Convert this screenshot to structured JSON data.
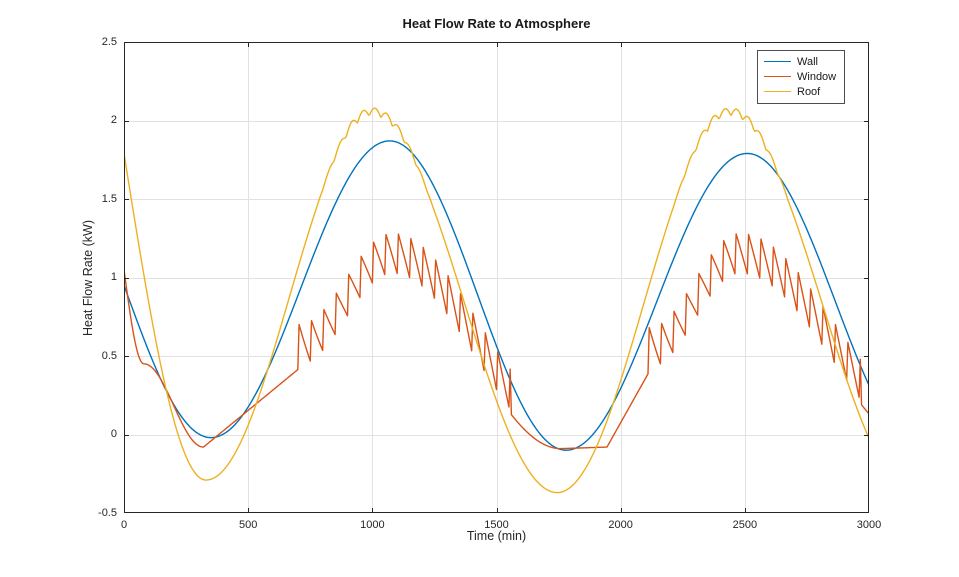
{
  "chart_data": {
    "type": "line",
    "title": "Heat Flow Rate to Atmosphere",
    "xlabel": "Time (min)",
    "ylabel": "Heat Flow Rate (kW)",
    "xlim": [
      0,
      3000
    ],
    "ylim": [
      -0.5,
      2.5
    ],
    "x_ticks": [
      0,
      500,
      1000,
      1500,
      2000,
      2500,
      3000
    ],
    "y_ticks": [
      -0.5,
      0,
      0.5,
      1,
      1.5,
      2,
      2.5
    ],
    "grid": true,
    "legend_position": "top-right",
    "axis_color": "#262626",
    "grid_color": "#e2e2e2",
    "background_color": "#ffffff",
    "sample_step": 5,
    "series": [
      {
        "name": "Wall",
        "color": "#0072BD",
        "keypoints": [
          [
            0,
            0.95,
            "sin"
          ],
          [
            350,
            -0.02,
            "cos"
          ],
          [
            1070,
            1.87,
            "cos"
          ],
          [
            1780,
            -0.1,
            "cos"
          ],
          [
            2510,
            1.79,
            "cos"
          ],
          [
            3220,
            -0.1,
            "cos"
          ]
        ],
        "end_value_at_3000": 0.33
      },
      {
        "name": "Window",
        "color": "#D95319",
        "keypoints": [
          [
            0,
            1.05,
            "sin"
          ],
          [
            80,
            0.45,
            "cos"
          ],
          [
            320,
            -0.08,
            "lin"
          ],
          [
            705,
            0.42,
            "cos"
          ],
          [
            1080,
            1.0,
            "cos"
          ],
          [
            1760,
            -0.09,
            "lin"
          ],
          [
            1945,
            -0.08,
            "lin"
          ],
          [
            2115,
            0.4,
            "cos"
          ],
          [
            2480,
            1.0,
            "cos"
          ],
          [
            3220,
            -0.09,
            "cos"
          ]
        ],
        "sawtooth": {
          "regions": [
            [
              705,
              1555
            ],
            [
              2115,
              2965
            ]
          ],
          "period": 50,
          "amplitude": 0.28
        },
        "peak_tooth_top": 1.25,
        "end_value_at_3000": 0.2
      },
      {
        "name": "Roof",
        "color": "#EDB120",
        "keypoints": [
          [
            0,
            1.79,
            "sin"
          ],
          [
            330,
            -0.29,
            "cos"
          ],
          [
            1000,
            2.03,
            "cos"
          ],
          [
            1745,
            -0.37,
            "cos"
          ],
          [
            2440,
            2.03,
            "cos"
          ],
          [
            3185,
            -0.37,
            "cos"
          ]
        ],
        "ripple": {
          "regions": [
            [
              380,
              3000
            ]
          ],
          "amplitude": 0.05,
          "period": 47,
          "threshold": 1.45,
          "span": 0.5
        },
        "peak_with_ripple": 2.07,
        "end_value_at_3000": 0.02
      }
    ]
  }
}
